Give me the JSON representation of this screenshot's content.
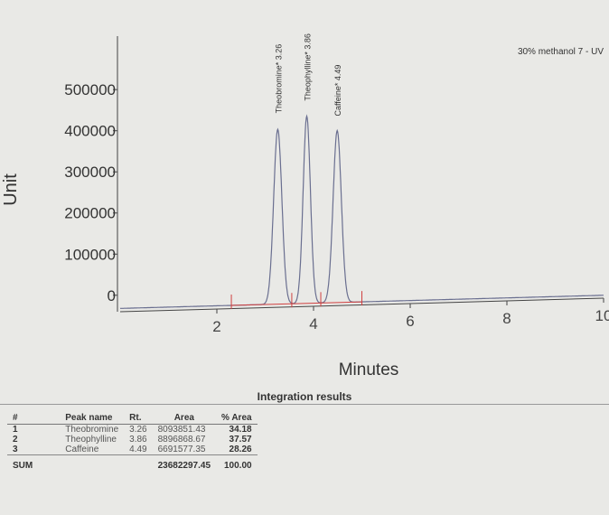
{
  "chart_data": {
    "type": "line",
    "title": "30% methanol 7 - UV",
    "xlabel": "Minutes",
    "ylabel": "Unit",
    "xlim": [
      0,
      10
    ],
    "ylim": [
      -40000,
      630000
    ],
    "xticks": [
      2,
      4,
      6,
      8,
      10
    ],
    "yticks": [
      0,
      100000,
      200000,
      300000,
      400000,
      500000
    ],
    "grid": false,
    "peaks": [
      {
        "label": "Theobromine* 3.26",
        "rt": 3.26,
        "height": 425000
      },
      {
        "label": "Theophylline* 3.86",
        "rt": 3.86,
        "height": 455000
      },
      {
        "label": "Caffeine* 4.49",
        "rt": 4.49,
        "height": 418000
      }
    ],
    "colors": {
      "trace": "#6a6f90",
      "integration": "#d04040",
      "axis": "#444444"
    }
  },
  "integration": {
    "title": "Integration results",
    "headers": [
      "#",
      "Peak name",
      "Rt.",
      "Area",
      "% Area"
    ],
    "rows": [
      [
        "1",
        "Theobromine",
        "3.26",
        "8093851.43",
        "34.18"
      ],
      [
        "2",
        "Theophylline",
        "3.86",
        "8896868.67",
        "37.57"
      ],
      [
        "3",
        "Caffeine",
        "4.49",
        "6691577.35",
        "28.26"
      ]
    ],
    "sum_label": "SUM",
    "sum_area": "23682297.45",
    "sum_pct": "100.00"
  }
}
